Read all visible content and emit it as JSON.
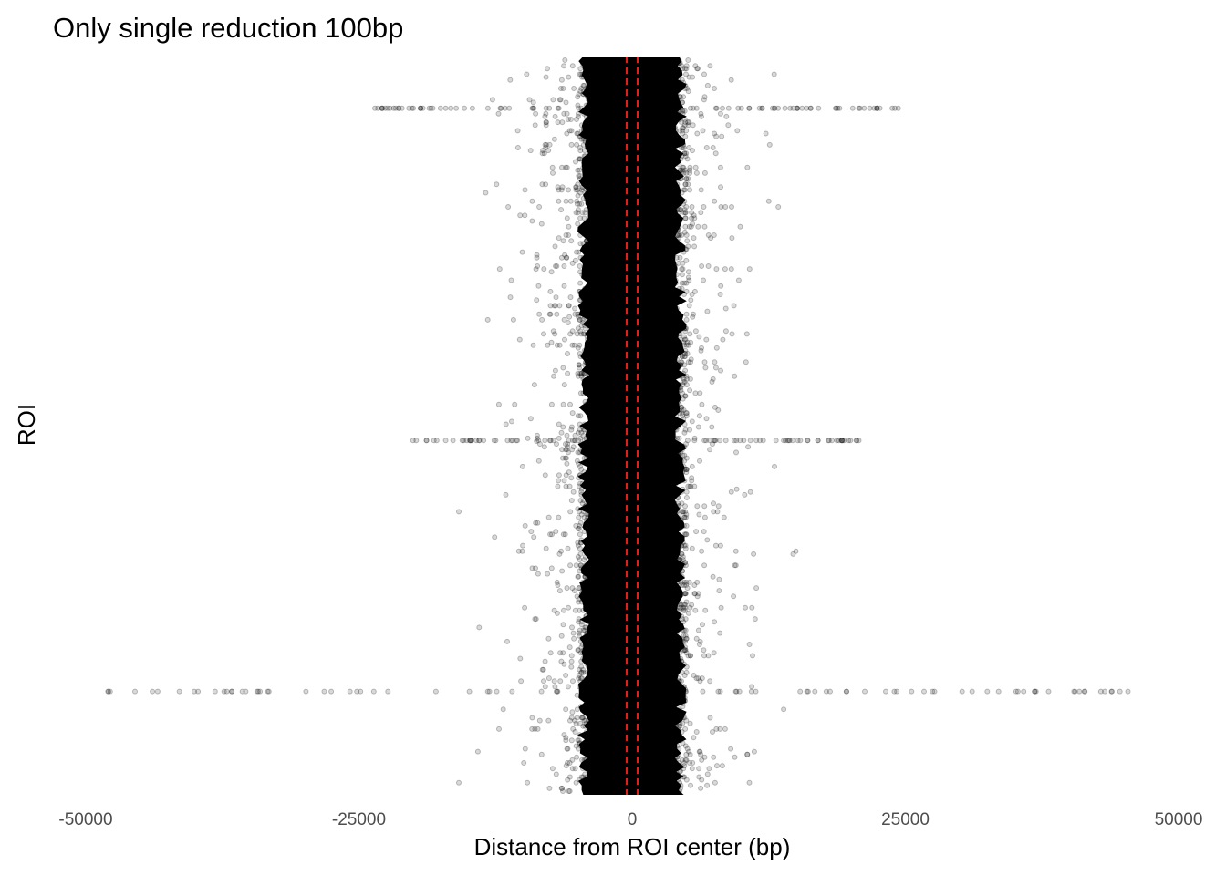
{
  "chart_data": {
    "type": "scatter",
    "title": "Only single reduction 100bp",
    "xlabel": "Distance from ROI center (bp)",
    "ylabel": "ROI",
    "xlim": [
      -50000,
      50000
    ],
    "xticks": [
      -50000,
      -25000,
      0,
      25000,
      50000
    ],
    "xtick_labels": [
      "-50000",
      "-25000",
      "0",
      "25000",
      "50000"
    ],
    "y_ticks_shown": false,
    "grid": false,
    "legend": "none",
    "point_color": "#000000",
    "point_alpha": 0.25,
    "reference_lines": {
      "x": [
        -500,
        500
      ],
      "style": "dashed",
      "color": "#e0201b"
    },
    "outlier_rows": [
      {
        "roi_fraction": 0.93,
        "x_range": [
          -24000,
          25000
        ]
      },
      {
        "roi_fraction": 0.48,
        "x_range": [
          -20500,
          21000
        ]
      },
      {
        "roi_fraction": 0.14,
        "x_range": [
          -48000,
          48000
        ]
      }
    ],
    "typical_spread": {
      "dense_core": [
        -5000,
        5000
      ],
      "sparse_extent": [
        -16000,
        16000
      ]
    }
  }
}
